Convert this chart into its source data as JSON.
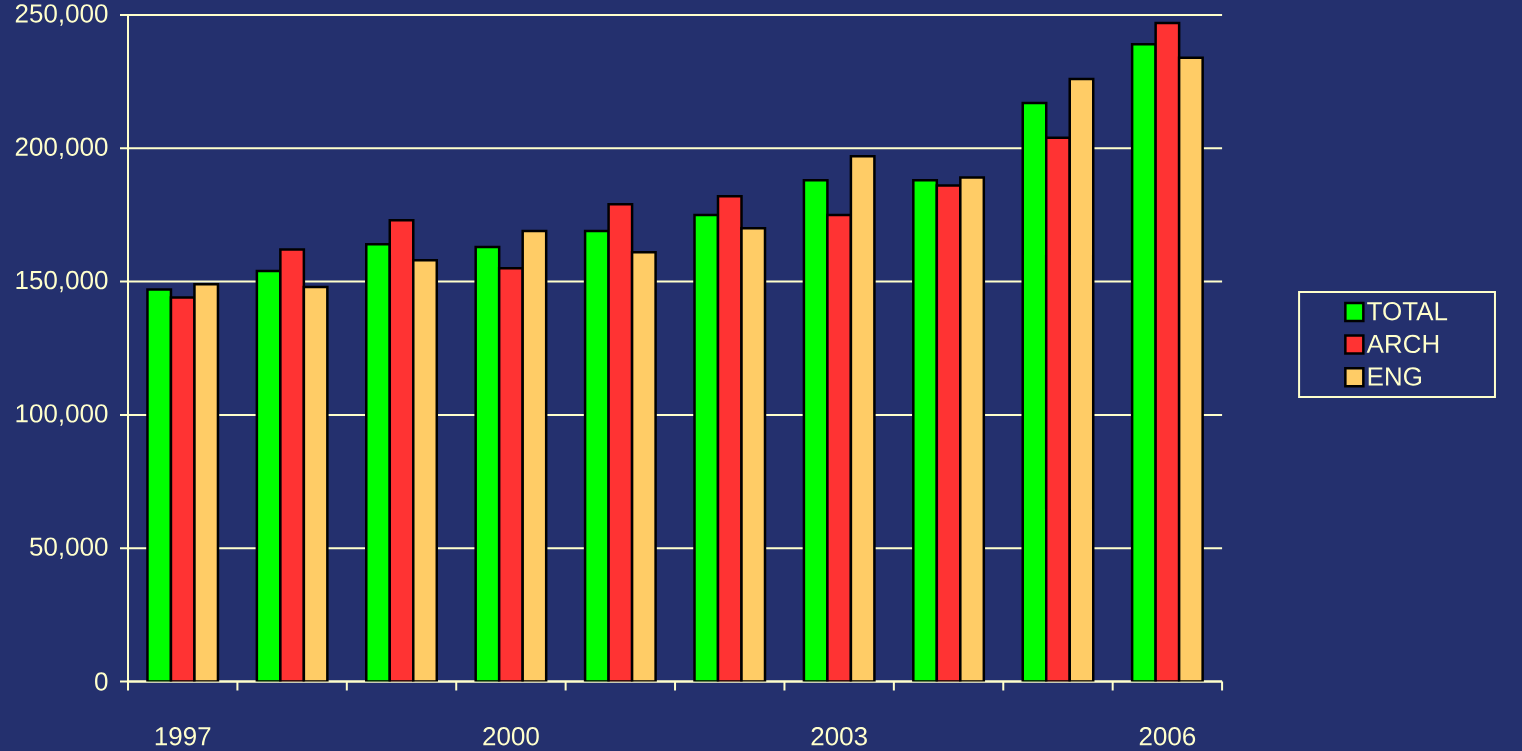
{
  "chart_data": {
    "type": "bar",
    "categories": [
      "1997",
      null,
      null,
      "2000",
      null,
      null,
      "2003",
      null,
      null,
      "2006"
    ],
    "series": [
      {
        "name": "TOTAL",
        "color": "#00ff00",
        "values": [
          147000,
          154000,
          164000,
          163000,
          169000,
          175000,
          188000,
          188000,
          217000,
          239000
        ]
      },
      {
        "name": "ARCH",
        "color": "#ff3333",
        "values": [
          144000,
          162000,
          173000,
          155000,
          179000,
          182000,
          175000,
          186000,
          204000,
          247000
        ]
      },
      {
        "name": "ENG",
        "color": "#ffcc66",
        "values": [
          149000,
          148000,
          158000,
          169000,
          161000,
          170000,
          197000,
          189000,
          226000,
          234000
        ]
      }
    ],
    "ylim": [
      0,
      250000
    ],
    "yticks": [
      0,
      {
        "value": 50000,
        "label": "50,000"
      },
      {
        "value": 100000,
        "label": "100,000"
      },
      {
        "value": 150000,
        "label": "150,000"
      },
      {
        "value": 200000,
        "label": "200,000"
      },
      {
        "value": 250000,
        "label": "250,000"
      }
    ],
    "grid": "y",
    "legend": "right"
  }
}
